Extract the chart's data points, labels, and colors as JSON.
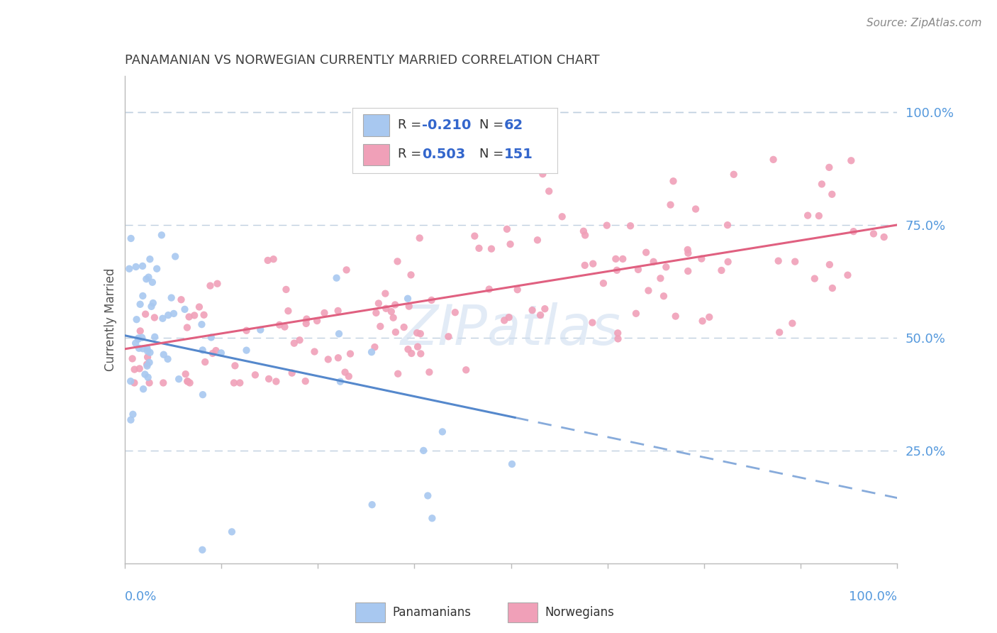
{
  "title": "PANAMANIAN VS NORWEGIAN CURRENTLY MARRIED CORRELATION CHART",
  "source": "Source: ZipAtlas.com",
  "ylabel": "Currently Married",
  "ytick_labels": [
    "25.0%",
    "50.0%",
    "75.0%",
    "100.0%"
  ],
  "legend_blue_r": "R = -0.210",
  "legend_blue_n": "N =  62",
  "legend_pink_r": "R =  0.503",
  "legend_pink_n": "N = 151",
  "blue_color": "#a8c8f0",
  "pink_color": "#f0a0b8",
  "blue_line_color": "#5588cc",
  "pink_line_color": "#e06080",
  "legend_text_color": "#3366cc",
  "ytick_color": "#5599dd",
  "xtick_color": "#5599dd",
  "grid_color": "#c0d0e0",
  "title_color": "#404040",
  "source_color": "#888888",
  "bg_color": "#ffffff",
  "watermark_color": "#d0dff0",
  "xlim": [
    0.0,
    1.0
  ],
  "ylim": [
    0.0,
    1.08
  ]
}
